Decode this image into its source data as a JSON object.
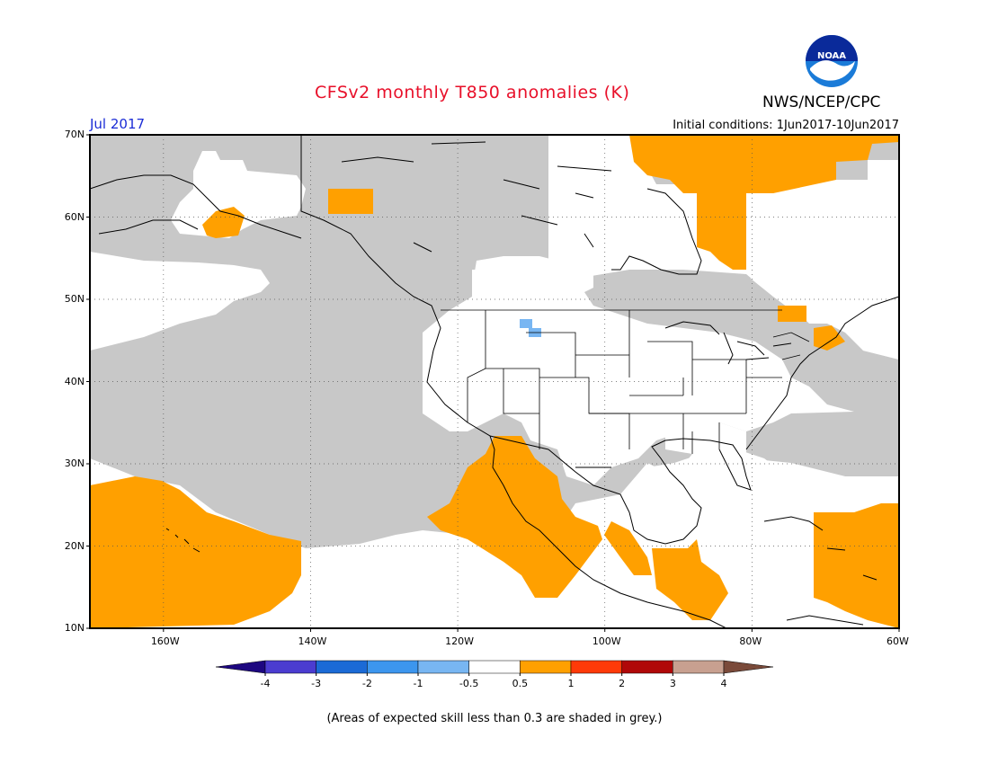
{
  "header": {
    "title": "CFSv2 monthly T850 anomalies (K)",
    "month": "Jul 2017",
    "initial_conditions": "Initial conditions: 1Jun2017-10Jun2017",
    "organization": "NWS/NCEP/CPC",
    "logo_text": "NOAA"
  },
  "map": {
    "extent": {
      "lon_min": -170,
      "lon_max": -60,
      "lat_min": 10,
      "lat_max": 70
    },
    "lat_labels": [
      "70N",
      "60N",
      "50N",
      "40N",
      "30N",
      "20N",
      "10N"
    ],
    "lon_labels": [
      "160W",
      "140W",
      "120W",
      "100W",
      "80W",
      "60W"
    ],
    "grid_style": "dotted"
  },
  "legend": {
    "tick_labels": [
      "-4",
      "-3",
      "-2",
      "-1",
      "-0.5",
      "0.5",
      "1",
      "2",
      "3",
      "4"
    ],
    "colors": [
      "#1d0780",
      "#4b3cd0",
      "#1b6ad6",
      "#3c96ee",
      "#78b6f2",
      "#ffffff",
      "#ffa000",
      "#ff3a08",
      "#b00808",
      "#c8a090",
      "#7a4a3a"
    ]
  },
  "colors": {
    "low_skill_grey": "#c8c8c8",
    "positive_anomaly": "#ffa000",
    "negative_anomaly": "#78b6f2"
  },
  "footer": {
    "note": "(Areas of expected skill less than 0.3 are shaded in grey.)"
  }
}
